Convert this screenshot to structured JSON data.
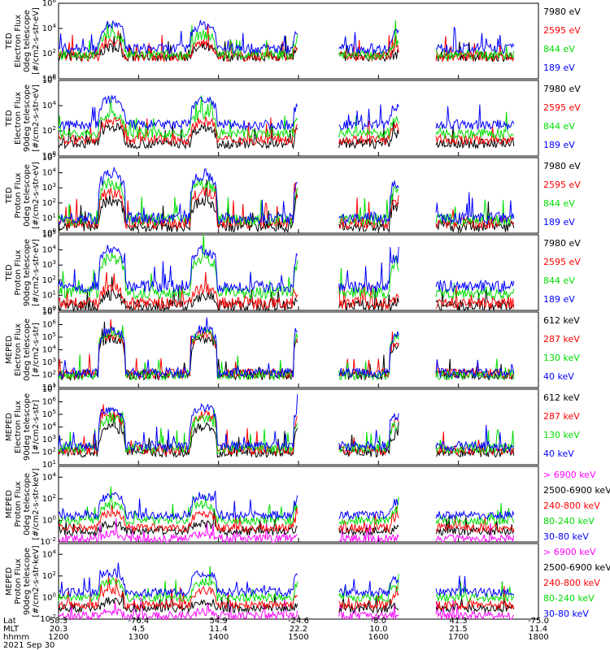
{
  "page": {
    "date_label": "2021 Sep 30"
  },
  "footer": {
    "row_labels": [
      "Lat",
      "MLT",
      "hhmm"
    ],
    "columns": [
      {
        "lat": "58.3",
        "mlt": "20.3",
        "hhmm": "1200"
      },
      {
        "lat": "-76.4",
        "mlt": "4.5",
        "hhmm": "1300"
      },
      {
        "lat": "54.9",
        "mlt": "11.4",
        "hhmm": "1400"
      },
      {
        "lat": "-24.6",
        "mlt": "22.2",
        "hhmm": "1500"
      },
      {
        "lat": "-8.0",
        "mlt": "10.0",
        "hhmm": "1600"
      },
      {
        "lat": "41.3",
        "mlt": "21.5",
        "hhmm": "1700"
      },
      {
        "lat": "-75.0",
        "mlt": "11.4",
        "hhmm": "1800"
      }
    ]
  },
  "chart_data": [
    {
      "type": "line",
      "ylabel": [
        "TED",
        "Electron Flux",
        "0deg telescope",
        "[#/cm2-s-str-eV]"
      ],
      "yscale": "log",
      "yticks": [
        {
          "exp": "6",
          "v": 1000000.0
        },
        {
          "exp": "4",
          "v": 10000.0
        },
        {
          "exp": "2",
          "v": 100
        },
        {
          "exp": "0",
          "v": 1
        }
      ],
      "ylim": [
        1,
        1000000.0
      ],
      "xlim": [
        0,
        360
      ],
      "series": [
        {
          "name": "7980 eV",
          "color": "#000000",
          "base": 60,
          "peak": 300
        },
        {
          "name": "2595 eV",
          "color": "#ff0000",
          "base": 60,
          "peak": 700
        },
        {
          "name": "844 eV",
          "color": "#00dd00",
          "base": 80,
          "peak": 3000
        },
        {
          "name": "189 eV",
          "color": "#0000ff",
          "base": 250,
          "peak": 20000
        }
      ]
    },
    {
      "type": "line",
      "ylabel": [
        "TED",
        "Electron Flux",
        "90deg telescope",
        "[#/cm2-s-str-eV]"
      ],
      "yscale": "log",
      "yticks": [
        {
          "exp": "6",
          "v": 1000000.0
        },
        {
          "exp": "4",
          "v": 10000.0
        },
        {
          "exp": "2",
          "v": 100
        },
        {
          "exp": "0",
          "v": 1
        }
      ],
      "ylim": [
        1,
        1000000.0
      ],
      "xlim": [
        0,
        360
      ],
      "series": [
        {
          "name": "7980 eV",
          "color": "#000000",
          "base": 10,
          "peak": 200
        },
        {
          "name": "2595 eV",
          "color": "#ff0000",
          "base": 20,
          "peak": 600
        },
        {
          "name": "844 eV",
          "color": "#00dd00",
          "base": 60,
          "peak": 2000
        },
        {
          "name": "189 eV",
          "color": "#0000ff",
          "base": 300,
          "peak": 30000
        }
      ]
    },
    {
      "type": "line",
      "ylabel": [
        "TED",
        "Proton Flux",
        "0deg telescope",
        "[#/cm2-s-str-eV]"
      ],
      "yscale": "log",
      "yticks": [
        {
          "exp": "5",
          "v": 100000.0
        },
        {
          "exp": "4",
          "v": 10000.0
        },
        {
          "exp": "3",
          "v": 1000.0
        },
        {
          "exp": "2",
          "v": 100
        },
        {
          "exp": "1",
          "v": 10
        },
        {
          "exp": "0",
          "v": 1
        }
      ],
      "ylim": [
        1,
        100000.0
      ],
      "xlim": [
        0,
        360
      ],
      "series": [
        {
          "name": "7980 eV",
          "color": "#000000",
          "base": 3,
          "peak": 150
        },
        {
          "name": "2595 eV",
          "color": "#ff0000",
          "base": 5,
          "peak": 500
        },
        {
          "name": "844 eV",
          "color": "#00dd00",
          "base": 8,
          "peak": 2000
        },
        {
          "name": "189 eV",
          "color": "#0000ff",
          "base": 10,
          "peak": 8000
        }
      ]
    },
    {
      "type": "line",
      "ylabel": [
        "TED",
        "Proton Flux",
        "90deg telescope",
        "[#/cm2-s-str-eV]"
      ],
      "yscale": "log",
      "yticks": [
        {
          "exp": "5",
          "v": 100000.0
        },
        {
          "exp": "4",
          "v": 10000.0
        },
        {
          "exp": "3",
          "v": 1000.0
        },
        {
          "exp": "2",
          "v": 100
        },
        {
          "exp": "1",
          "v": 10
        },
        {
          "exp": "0",
          "v": 1
        }
      ],
      "ylim": [
        1,
        100000.0
      ],
      "xlim": [
        0,
        360
      ],
      "series": [
        {
          "name": "7980 eV",
          "color": "#000000",
          "base": 2,
          "peak": 10
        },
        {
          "name": "2595 eV",
          "color": "#ff0000",
          "base": 3,
          "peak": 30
        },
        {
          "name": "844 eV",
          "color": "#00dd00",
          "base": 15,
          "peak": 3000
        },
        {
          "name": "189 eV",
          "color": "#0000ff",
          "base": 40,
          "peak": 10000
        }
      ]
    },
    {
      "type": "line",
      "ylabel": [
        "MEPED",
        "Electron Flux",
        "0deg telescope",
        "[#/cm2-s-str]"
      ],
      "yscale": "log",
      "yticks": [
        {
          "exp": "7",
          "v": 10000000.0
        },
        {
          "exp": "6",
          "v": 1000000.0
        },
        {
          "exp": "5",
          "v": 100000.0
        },
        {
          "exp": "4",
          "v": 10000.0
        },
        {
          "exp": "3",
          "v": 1000.0
        },
        {
          "exp": "2",
          "v": 100
        },
        {
          "exp": "1",
          "v": 10
        }
      ],
      "ylim": [
        10,
        10000000.0
      ],
      "xlim": [
        0,
        360
      ],
      "series": [
        {
          "name": "612 keV",
          "color": "#000000",
          "base": 100,
          "peak": 80000
        },
        {
          "name": "287 keV",
          "color": "#ff0000",
          "base": 130,
          "peak": 150000
        },
        {
          "name": "130 keV",
          "color": "#00dd00",
          "base": 100,
          "peak": 250000
        },
        {
          "name": "40 keV",
          "color": "#0000ff",
          "base": 150,
          "peak": 400000
        }
      ]
    },
    {
      "type": "line",
      "ylabel": [
        "MEPED",
        "Electron Flux",
        "90deg telescope",
        "[#/cm2-s-str]"
      ],
      "yscale": "log",
      "yticks": [
        {
          "exp": "7",
          "v": 10000000.0
        },
        {
          "exp": "6",
          "v": 1000000.0
        },
        {
          "exp": "5",
          "v": 100000.0
        },
        {
          "exp": "4",
          "v": 10000.0
        },
        {
          "exp": "3",
          "v": 1000.0
        },
        {
          "exp": "2",
          "v": 100
        },
        {
          "exp": "1",
          "v": 10
        }
      ],
      "ylim": [
        10,
        10000000.0
      ],
      "xlim": [
        0,
        360
      ],
      "series": [
        {
          "name": "612 keV",
          "color": "#000000",
          "base": 100,
          "peak": 10000
        },
        {
          "name": "287 keV",
          "color": "#ff0000",
          "base": 150,
          "peak": 80000
        },
        {
          "name": "130 keV",
          "color": "#00dd00",
          "base": 200,
          "peak": 50000
        },
        {
          "name": "40 keV",
          "color": "#0000ff",
          "base": 300,
          "peak": 300000
        }
      ]
    },
    {
      "type": "line",
      "ylabel": [
        "MEPED",
        "Proton Flux",
        "0deg telescope",
        "[#/cm2-s-str-keV]"
      ],
      "yscale": "log",
      "yticks": [
        {
          "exp": "4",
          "v": 10000.0
        },
        {
          "exp": "2",
          "v": 100
        },
        {
          "exp": "0",
          "v": 1
        },
        {
          "exp": "-2",
          "v": 0.01
        }
      ],
      "ylim": [
        0.01,
        100000.0
      ],
      "xlim": [
        0,
        360
      ],
      "series": [
        {
          "name": "> 6900 keV",
          "color": "#ff00ff",
          "base": 0.02,
          "peak": 0.05
        },
        {
          "name": "2500-6900 keV",
          "color": "#000000",
          "base": 0.1,
          "peak": 0.5
        },
        {
          "name": "240-800 keV",
          "color": "#ff0000",
          "base": 0.2,
          "peak": 5
        },
        {
          "name": "80-240 keV",
          "color": "#00dd00",
          "base": 1,
          "peak": 30
        },
        {
          "name": "30-80 keV",
          "color": "#0000ff",
          "base": 3,
          "peak": 200
        }
      ]
    },
    {
      "type": "line",
      "ylabel": [
        "MEPED",
        "Proton Flux",
        "90deg telescope",
        "[#/cm2-s-str-keV]"
      ],
      "yscale": "log",
      "yticks": [
        {
          "exp": "4",
          "v": 10000.0
        },
        {
          "exp": "2",
          "v": 100
        },
        {
          "exp": "0",
          "v": 1
        },
        {
          "exp": "-2",
          "v": 0.01
        }
      ],
      "ylim": [
        0.01,
        100000.0
      ],
      "xlim": [
        0,
        360
      ],
      "series": [
        {
          "name": "> 6900 keV",
          "color": "#ff00ff",
          "base": 0.02,
          "peak": 0.05
        },
        {
          "name": "2500-6900 keV",
          "color": "#000000",
          "base": 0.1,
          "peak": 0.5
        },
        {
          "name": "240-800 keV",
          "color": "#ff0000",
          "base": 0.2,
          "peak": 5
        },
        {
          "name": "80-240 keV",
          "color": "#00dd00",
          "base": 1,
          "peak": 30
        },
        {
          "name": "30-80 keV",
          "color": "#0000ff",
          "base": 3,
          "peak": 200
        }
      ]
    }
  ]
}
